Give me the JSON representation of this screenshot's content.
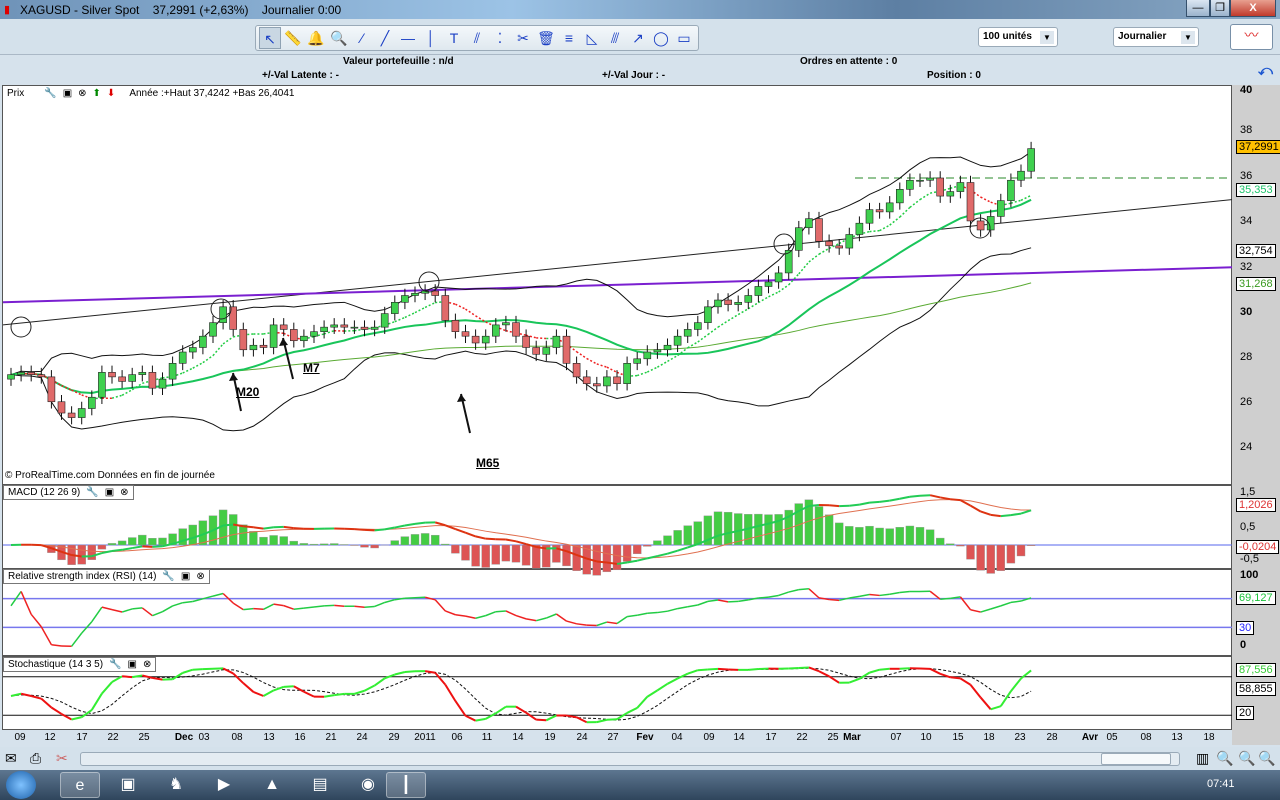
{
  "window": {
    "title": "XAGUSD - Silver Spot",
    "price": "37,2991 (+2,63%)",
    "period": "Journalier 0:00",
    "min": "—",
    "max": "❐",
    "close": "X"
  },
  "toolbar": {
    "tools": [
      "cursor-icon",
      "ruler-icon",
      "alarm-bell-icon",
      "zoom-icon",
      "segment-icon",
      "line-icon",
      "horizontal-line-icon",
      "vertical-line-icon",
      "text-icon",
      "parallel-icon",
      "points-icon",
      "tools-icon",
      "trash-icon",
      "fibonacci-icon",
      "fan-icon",
      "channel-icon",
      "trend-icon",
      "ellipse-icon",
      "rectangle-icon"
    ],
    "tool_glyphs": [
      "↖",
      "📏",
      "🔔",
      "🔍",
      "⁄",
      "╱",
      "—",
      "│",
      "T",
      "⫽",
      "⁚",
      "✂",
      "🗑",
      "≡",
      "◺",
      "⫻",
      "↗",
      "◯",
      "▭"
    ],
    "quantity": "100 unités",
    "timeframe": "Journalier"
  },
  "info": {
    "portfolio": "Valeur portefeuille : n/d",
    "pending": "Ordres en attente : 0",
    "latent": "+/-Val Latente : -",
    "day": "+/-Val Jour : -",
    "position": "Position : 0"
  },
  "price_panel": {
    "title": "Prix",
    "stats": "Année :+Haut 37,4242 +Bas 26,4041",
    "copyright": "© ProRealTime.com  Données en fin de journée",
    "annotations": [
      "M20",
      "M7",
      "M65"
    ],
    "ticks": [
      "40",
      "38",
      "36",
      "34",
      "32",
      "30",
      "28",
      "26",
      "24"
    ],
    "labels": {
      "last": "37,2991",
      "ma7": "35,353",
      "bb_up": "32,754",
      "ma65": "31,268"
    }
  },
  "macd_panel": {
    "title": "MACD (12 26 9)",
    "ticks": [
      "1,5",
      "0,5",
      "-0,5"
    ],
    "labels": {
      "macd": "1,2026",
      "hist": "-0,0204"
    }
  },
  "rsi_panel": {
    "title": "Relative strength index (RSI) (14)",
    "ticks": [
      "100",
      "0"
    ],
    "labels": {
      "rsi": "69,127",
      "low": "30"
    }
  },
  "stoch_panel": {
    "title": "Stochastique (14 3 5)",
    "labels": {
      "k": "87,556",
      "d": "58,855",
      "low": "20"
    }
  },
  "date_axis": [
    "09",
    "12",
    "17",
    "22",
    "25",
    "Dec",
    "03",
    "08",
    "13",
    "16",
    "21",
    "24",
    "29",
    "2011",
    "06",
    "11",
    "14",
    "19",
    "24",
    "27",
    "Fev",
    "04",
    "09",
    "14",
    "17",
    "22",
    "25",
    "Mar",
    "07",
    "10",
    "15",
    "18",
    "23",
    "28",
    "Avr",
    "05",
    "08",
    "13",
    "18"
  ],
  "chart": {
    "type": "candlestick",
    "closes": [
      27.3,
      27.4,
      27.3,
      27.2,
      26.1,
      25.6,
      25.4,
      25.8,
      26.3,
      27.4,
      27.2,
      27.0,
      27.3,
      27.4,
      26.7,
      27.1,
      27.8,
      28.3,
      28.5,
      29.0,
      29.6,
      30.3,
      29.3,
      28.4,
      28.6,
      28.5,
      29.5,
      29.3,
      28.8,
      29.0,
      29.2,
      29.4,
      29.5,
      29.4,
      29.4,
      29.3,
      29.4,
      30.0,
      30.5,
      30.8,
      30.9,
      31.0,
      30.8,
      29.7,
      29.2,
      29.0,
      28.7,
      29.0,
      29.5,
      29.6,
      29.0,
      28.5,
      28.2,
      28.5,
      29.0,
      27.8,
      27.2,
      26.9,
      26.8,
      27.2,
      26.9,
      27.8,
      28.0,
      28.3,
      28.4,
      28.6,
      29.0,
      29.3,
      29.6,
      30.3,
      30.6,
      30.4,
      30.5,
      30.8,
      31.2,
      31.4,
      31.8,
      32.8,
      33.8,
      34.2,
      33.2,
      33.0,
      32.9,
      33.5,
      34.0,
      34.6,
      34.5,
      34.9,
      35.5,
      35.9,
      35.9,
      36.0,
      35.2,
      35.4,
      35.8,
      34.1,
      33.7,
      34.3,
      35.0,
      35.9,
      36.3,
      37.3
    ],
    "price_range": [
      23,
      40
    ],
    "resistance": 36,
    "colors": {
      "up": "#3fd04f",
      "down": "#e06a6a",
      "ma20": "#19c55a",
      "ma65": "#5aaa33",
      "trend": "#7a1fd0"
    }
  },
  "taskbar": {
    "clock": "07:41",
    "apps": [
      "ie-icon",
      "explorer-icon",
      "app-icon",
      "media-icon",
      "vlc-icon",
      "folder-icon",
      "globe-icon",
      "prorealtime-icon"
    ],
    "glyphs": [
      "e",
      "▣",
      "♞",
      "▶",
      "▲",
      "▤",
      "◉",
      "┃"
    ]
  }
}
